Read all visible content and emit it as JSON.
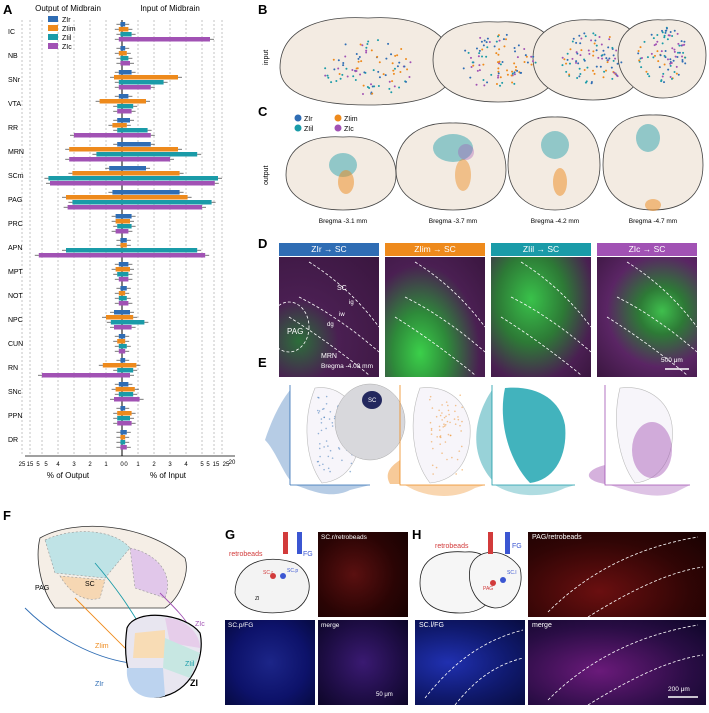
{
  "colors": {
    "zlr": "#2f6db4",
    "zlim": "#ee8a1c",
    "zlil": "#1a9ba8",
    "zlc": "#a152b4"
  },
  "panel_letters": [
    "A",
    "B",
    "C",
    "D",
    "E",
    "F",
    "G",
    "H"
  ],
  "chart_data": {
    "type": "bar",
    "orientation": "horizontal",
    "title_left": "Output  of  Midbrain",
    "title_right": "Input  of  Midbrain",
    "xlabel_left": "% of Output",
    "xlabel_right": "% of Input",
    "left_ticks": [
      "25",
      "15",
      "5",
      "5",
      "4",
      "3",
      "2",
      "1",
      "0"
    ],
    "right_ticks": [
      "0",
      "1",
      "2",
      "3",
      "4",
      "5",
      "5",
      "15",
      "25"
    ],
    "right_ticks_extra": "20",
    "categories": [
      "IC",
      "NB",
      "SNr",
      "VTA",
      "RR",
      "MRN",
      "SCm",
      "PAG",
      "PRC",
      "APN",
      "MPT",
      "NOT",
      "NPC",
      "CUN",
      "RN",
      "SNc",
      "PPN",
      "DR"
    ],
    "series": [
      {
        "name": "ZIr",
        "output": [
          0.1,
          0.1,
          0.2,
          0.2,
          0.3,
          0.3,
          0.8,
          0.6,
          0.4,
          0.1,
          0.2,
          0.1,
          0.5,
          0.2,
          0.1,
          0.2,
          0.1,
          0.1
        ],
        "input": [
          0.2,
          0.2,
          0.6,
          0.4,
          0.5,
          1.8,
          1.5,
          3.6,
          0.6,
          0.3,
          0.4,
          0.3,
          0.5,
          0.2,
          0.2,
          0.4,
          0.2,
          0.3
        ]
      },
      {
        "name": "ZIim",
        "output": [
          0.2,
          0.2,
          0.5,
          1.4,
          0.6,
          3.3,
          3.1,
          3.5,
          0.4,
          0.1,
          0.4,
          0.2,
          1.0,
          0.3,
          1.2,
          0.4,
          0.3,
          0.1
        ],
        "input": [
          0.4,
          0.3,
          3.5,
          1.5,
          0.3,
          3.5,
          3.6,
          4.1,
          0.5,
          0.3,
          0.5,
          0.2,
          0.7,
          0.2,
          0.9,
          0.8,
          0.6,
          0.2
        ]
      },
      {
        "name": "ZIil",
        "output": [
          0.1,
          0.1,
          0.2,
          0.3,
          0.3,
          1.6,
          4.6,
          3.1,
          0.3,
          3.5,
          0.3,
          0.2,
          0.7,
          0.2,
          0.3,
          0.2,
          0.3,
          0.1
        ],
        "input": [
          0.6,
          0.4,
          2.6,
          0.7,
          1.6,
          4.7,
          6.0,
          5.6,
          0.6,
          4.7,
          0.4,
          0.3,
          1.4,
          0.3,
          0.7,
          0.7,
          0.5,
          0.2
        ]
      },
      {
        "name": "ZIc",
        "output": [
          0.2,
          0.1,
          0.2,
          0.3,
          3.0,
          3.3,
          4.5,
          3.4,
          0.4,
          5.2,
          0.2,
          0.2,
          0.5,
          0.2,
          5.0,
          0.5,
          0.3,
          0.1
        ],
        "input": [
          5.5,
          0.5,
          1.8,
          0.6,
          1.8,
          3.0,
          5.8,
          5.0,
          0.4,
          5.2,
          0.4,
          0.4,
          0.6,
          0.2,
          0.5,
          1.1,
          0.6,
          0.3
        ]
      }
    ]
  },
  "panelB": {
    "row_label": "input"
  },
  "panelC": {
    "row_label": "output",
    "legend": [
      "ZIr",
      "ZIim",
      "ZIil",
      "ZIc"
    ],
    "bregma": [
      "Bregma -3.1 mm",
      "Bregma -3.7 mm",
      "Bregma -4.2 mm",
      "Bregma -4.7 mm"
    ]
  },
  "panelD": {
    "headers": [
      "ZIr → SC",
      "ZIim → SC",
      "ZIil → SC",
      "ZIc → SC"
    ],
    "labels": {
      "sc": "SC",
      "ig": "ig",
      "iw": "iw",
      "dg": "dg",
      "pag": "PAG",
      "mrn": "MRN"
    },
    "bregma": "Bregma -4.08 mm",
    "scale": "500 μm"
  },
  "panelE": {
    "inset_label": "SC"
  },
  "panelF": {
    "labels": [
      "SC",
      "PAG",
      "ZIc",
      "ZIil",
      "ZIim",
      "ZIr",
      "ZI"
    ]
  },
  "panelG": {
    "retrobeads": "retrobeads",
    "fg": "FG",
    "scr": "SC.r",
    "scp": "SC.p",
    "zi": "ZI",
    "tiles": [
      "SC.r/retrobeads",
      "SC.p/FG",
      "merge"
    ],
    "scale": "50 μm"
  },
  "panelH": {
    "retrobeads": "retrobeads",
    "fg": "FG",
    "pag": "PAG",
    "scl": "SC.l",
    "tiles": [
      "PAG/retrobeads",
      "SC.l/FG",
      "merge"
    ],
    "scale": "200 μm"
  }
}
